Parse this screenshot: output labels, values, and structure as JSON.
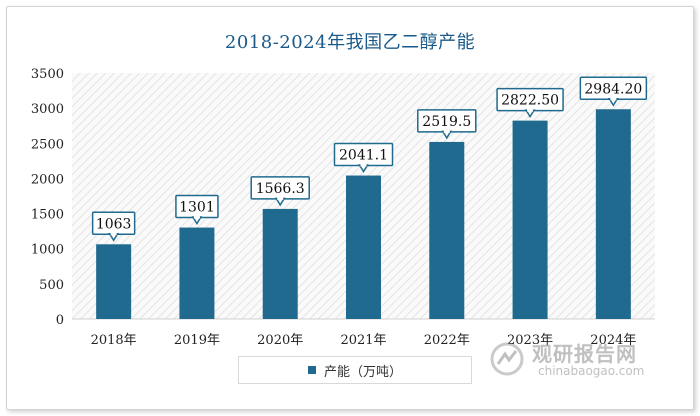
{
  "chart_data": {
    "type": "bar",
    "title": "2018-2024年我国乙二醇产能",
    "categories": [
      "2018年",
      "2019年",
      "2020年",
      "2021年",
      "2022年",
      "2023年",
      "2024年"
    ],
    "series": [
      {
        "name": "产能（万吨）",
        "values": [
          1063,
          1301,
          1566.3,
          2041.1,
          2519.5,
          2822.5,
          2984.2
        ],
        "labels": [
          "1063",
          "1301",
          "1566.3",
          "2041.1",
          "2519.5",
          "2822.50",
          "2984.20"
        ]
      }
    ],
    "ylim": [
      0,
      3500
    ],
    "yticks": [
      0,
      500,
      1000,
      1500,
      2000,
      2500,
      3000,
      3500
    ],
    "bar_color": "#1f6a8e",
    "legend_position": "bottom-center"
  },
  "watermark": {
    "brand": "观研报告网",
    "url": "chinabaogao.com"
  }
}
